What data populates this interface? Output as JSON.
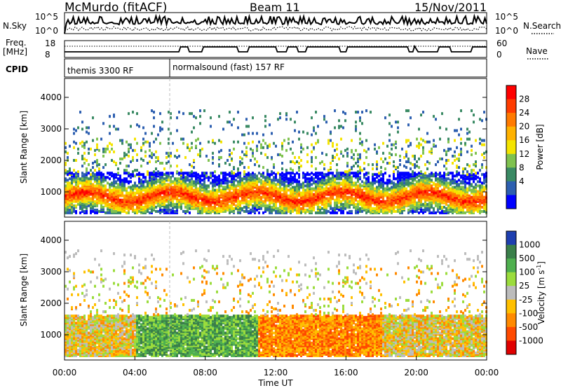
{
  "header": {
    "station": "McMurdo (fitACF)",
    "beam": "Beam 11",
    "date": "15/Nov/2011"
  },
  "top_panels": {
    "nsky_label": "N.Sky",
    "nsky_ticks": [
      "10^5",
      "10^0"
    ],
    "nsearch_label": "N.Search",
    "nsearch_ticks": [
      "10^5",
      "10^0"
    ],
    "freq_label_1": "Freq.",
    "freq_label_2": "[MHz]",
    "freq_ticks": [
      "18",
      "8"
    ],
    "nave_label": "Nave",
    "nave_ticks": [
      "60",
      "0"
    ],
    "cpid_label": "CPID",
    "cpid_segments": [
      {
        "label": "themis 3300 RF",
        "start_hour": 0
      },
      {
        "label": "normalsound (fast) 157 RF",
        "start_hour": 6
      }
    ]
  },
  "chart_data": [
    {
      "type": "heatmap",
      "title": "",
      "xlabel": "Time UT",
      "ylabel": "Slant Range [km]",
      "xlim": [
        0,
        24
      ],
      "ylim": [
        200,
        4600
      ],
      "x_ticks": [
        "00:00",
        "04:00",
        "08:00",
        "12:00",
        "16:00",
        "20:00",
        "00:00"
      ],
      "y_ticks": [
        "1000",
        "2000",
        "3000",
        "4000"
      ],
      "colorbar_label": "Power [dB]",
      "colorbar_ticks": [
        "28",
        "24",
        "20",
        "16",
        "12",
        "8",
        "4"
      ],
      "colorbar_colors": [
        "#ff0000",
        "#ff3c00",
        "#ff7a00",
        "#ffb200",
        "#f4e400",
        "#7fc24f",
        "#3a8a64",
        "#2d5fb0",
        "#0000ff"
      ],
      "scatter_bands_km": [
        [
          500,
          1500
        ],
        [
          1500,
          2700
        ],
        [
          2800,
          3600
        ]
      ]
    },
    {
      "type": "heatmap",
      "title": "",
      "xlabel": "Time UT",
      "ylabel": "Slant Range [km]",
      "xlim": [
        0,
        24
      ],
      "ylim": [
        200,
        4600
      ],
      "x_ticks": [
        "00:00",
        "04:00",
        "08:00",
        "12:00",
        "16:00",
        "20:00",
        "00:00"
      ],
      "y_ticks": [
        "1000",
        "2000",
        "3000",
        "4000"
      ],
      "colorbar_label_main": "Velocity [m s",
      "colorbar_label_exp": "-1",
      "colorbar_label_close": "]",
      "colorbar_ticks": [
        "1000",
        "500",
        "100",
        "25",
        "-25",
        "-100",
        "-500",
        "-1000"
      ],
      "colorbar_colors": [
        "#1e3fb0",
        "#3a7f4a",
        "#4fb04f",
        "#9bdc3c",
        "#bcbcbc",
        "#ffc000",
        "#ff8a00",
        "#ff4a00",
        "#e00000"
      ]
    }
  ],
  "x_axis": {
    "title": "Time UT"
  }
}
